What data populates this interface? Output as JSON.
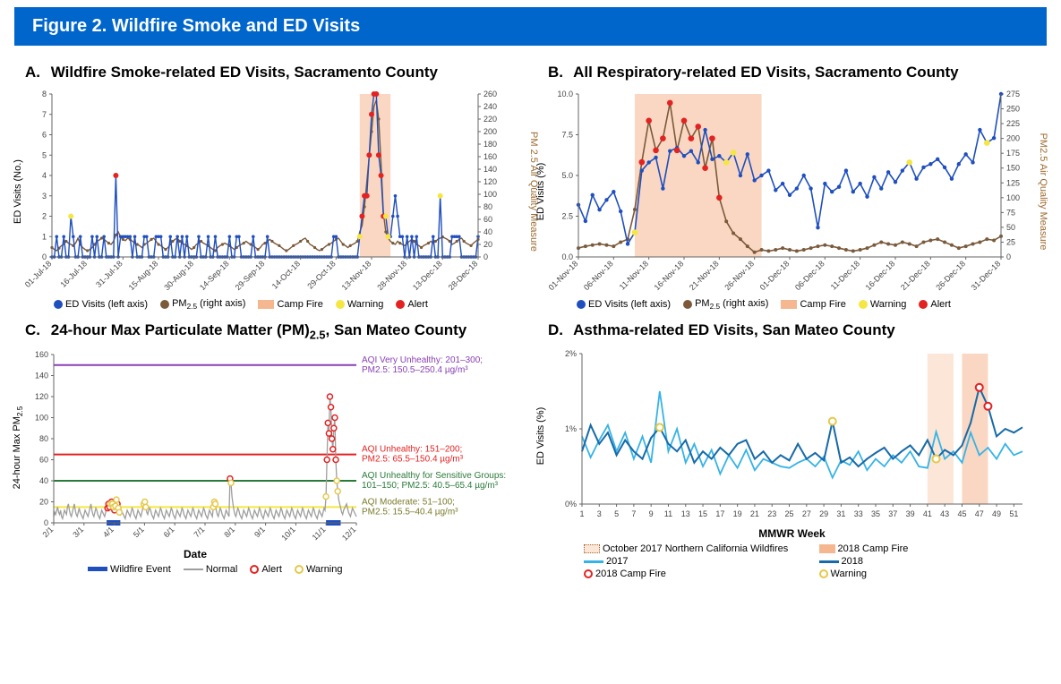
{
  "banner_title": "Figure 2. Wildfire Smoke and ED Visits",
  "colors": {
    "banner_bg": "#0066CC",
    "ed_visits_blue": "#1f4fbf",
    "pm25_brown": "#7a5a3a",
    "campfire_fill": "#f4b78f",
    "campfire_fill_alpha": "rgba(244,183,143,0.55)",
    "warning_yellow": "#f5e642",
    "alert_red": "#e32222",
    "normal_gray": "#9e9e9e",
    "purple": "#8a3fb5",
    "green": "#2a7a3a",
    "olive": "#7a7a2a",
    "cyan_light": "#36b3e6",
    "cyan_dark": "#166aa8",
    "brown_axis": "#9e6b2f",
    "oct2017_fill": "rgba(244,183,143,0.35)",
    "grid": "#e0e0e0"
  },
  "panelA": {
    "label": "A.",
    "title": "Wildfire Smoke-related ED Visits, Sacramento County",
    "left_axis_label": "ED Visits (No.)",
    "right_axis_label": "PM 2.5 Air Quality Measure",
    "y_left": {
      "min": 0,
      "max": 8,
      "step": 1
    },
    "y_right": {
      "min": 0,
      "max": 260,
      "step": 20
    },
    "campfire_x": [
      130,
      143
    ],
    "x_ticks": [
      "01-Jul-18",
      "16-Jul-18",
      "31-Jul-18",
      "15-Aug-18",
      "30-Aug-18",
      "14-Sep-18",
      "29-Sep-18",
      "14-Oct-18",
      "29-Oct-18",
      "13-Nov-18",
      "28-Nov-18",
      "13-Dec-18",
      "28-Dec-18"
    ],
    "ed_values": [
      0,
      0,
      1,
      0,
      0,
      1,
      0,
      0,
      2,
      1,
      0,
      0,
      1,
      0,
      0,
      0,
      0,
      1,
      0,
      1,
      0,
      0,
      1,
      0,
      0,
      0,
      0,
      4,
      0,
      1,
      1,
      1,
      1,
      1,
      0,
      1,
      0,
      0,
      0,
      1,
      1,
      0,
      0,
      0,
      1,
      1,
      1,
      0,
      0,
      0,
      1,
      0,
      0,
      1,
      0,
      1,
      0,
      1,
      0,
      0,
      0,
      0,
      1,
      0,
      0,
      0,
      1,
      0,
      0,
      1,
      0,
      0,
      0,
      0,
      0,
      1,
      0,
      0,
      1,
      1,
      0,
      0,
      0,
      0,
      0,
      1,
      0,
      0,
      0,
      0,
      0,
      1,
      0,
      0,
      0,
      0,
      0,
      0,
      0,
      0,
      0,
      0,
      0,
      0,
      0,
      0,
      0,
      0,
      0,
      0,
      0,
      0,
      0,
      0,
      0,
      0,
      0,
      0,
      0,
      1,
      1,
      0,
      0,
      0,
      0,
      0,
      0,
      0,
      0,
      0,
      1,
      2,
      3,
      3,
      5,
      7,
      8,
      8,
      5,
      4,
      2,
      2,
      1,
      1,
      2,
      3,
      2,
      1,
      1,
      0,
      1,
      0,
      1,
      0,
      1,
      0,
      0,
      0,
      0,
      0,
      0,
      1,
      0,
      0,
      3,
      0,
      0,
      0,
      0,
      1,
      1,
      1,
      1,
      0,
      0,
      0,
      0,
      0,
      0,
      0,
      1
    ],
    "pm_values": [
      15,
      12,
      10,
      14,
      18,
      20,
      25,
      22,
      20,
      18,
      22,
      30,
      20,
      15,
      12,
      10,
      12,
      15,
      20,
      25,
      27,
      30,
      28,
      25,
      22,
      20,
      25,
      35,
      40,
      32,
      28,
      26,
      30,
      28,
      25,
      22,
      20,
      18,
      15,
      20,
      22,
      25,
      28,
      30,
      25,
      20,
      18,
      15,
      12,
      15,
      20,
      25,
      28,
      30,
      25,
      22,
      20,
      18,
      15,
      12,
      15,
      20,
      22,
      25,
      22,
      20,
      18,
      15,
      12,
      10,
      15,
      18,
      20,
      22,
      20,
      18,
      15,
      12,
      15,
      18,
      20,
      22,
      25,
      22,
      20,
      18,
      15,
      12,
      15,
      20,
      22,
      25,
      28,
      25,
      22,
      20,
      18,
      15,
      12,
      10,
      12,
      15,
      18,
      20,
      22,
      25,
      28,
      30,
      25,
      20,
      18,
      15,
      12,
      10,
      12,
      15,
      18,
      20,
      22,
      25,
      28,
      30,
      25,
      20,
      18,
      15,
      18,
      20,
      22,
      25,
      40,
      50,
      80,
      120,
      160,
      200,
      240,
      250,
      220,
      150,
      70,
      40,
      30,
      25,
      22,
      20,
      25,
      22,
      20,
      18,
      22,
      25,
      28,
      25,
      20,
      18,
      15,
      18,
      20,
      22,
      25,
      22,
      25,
      28,
      30,
      32,
      30,
      28,
      25,
      20,
      22,
      25,
      28,
      30,
      25,
      22,
      20,
      18,
      22,
      25,
      28
    ],
    "alerts_idx": [
      27,
      131,
      132,
      133,
      134,
      135,
      136,
      137,
      138,
      139,
      140
    ],
    "warnings_idx": [
      8,
      130,
      141,
      142,
      164
    ],
    "legend": {
      "ed": "ED Visits (left axis)",
      "pm": "PM2.5 (right axis)",
      "camp": "Camp Fire",
      "warn": "Warning",
      "alert": "Alert"
    }
  },
  "panelB": {
    "label": "B.",
    "title": "All Respiratory-related ED Visits, Sacramento County",
    "left_axis_label": "ED Visits (%)",
    "right_axis_label": "PM2.5 Air Quality Measure",
    "y_left": {
      "min": 0,
      "max": 10,
      "step": 2.5,
      "labels": [
        "0.0",
        "2.5",
        "5.0",
        "7.5",
        "10.0"
      ]
    },
    "y_right": {
      "min": 0,
      "max": 275,
      "step": 25
    },
    "campfire_x": [
      8,
      26
    ],
    "x_ticks": [
      "01-Nov-18",
      "06-Nov-18",
      "11-Nov-18",
      "16-Nov-18",
      "21-Nov-18",
      "26-Nov-18",
      "01-Dec-18",
      "06-Dec-18",
      "11-Dec-18",
      "16-Dec-18",
      "21-Dec-18",
      "26-Dec-18",
      "31-Dec-18"
    ],
    "ed_values": [
      3.2,
      2.2,
      3.8,
      2.9,
      3.5,
      4.0,
      2.8,
      0.8,
      1.5,
      5.3,
      5.8,
      6.1,
      4.2,
      6.5,
      6.7,
      6.2,
      6.5,
      5.8,
      7.8,
      6.0,
      6.2,
      5.8,
      6.4,
      5.0,
      6.3,
      4.7,
      5.0,
      5.3,
      4.1,
      4.5,
      3.8,
      4.2,
      5.0,
      4.2,
      1.8,
      4.5,
      4.0,
      4.3,
      5.3,
      4.0,
      4.5,
      3.7,
      4.9,
      4.2,
      5.2,
      4.6,
      5.3,
      5.8,
      4.8,
      5.5,
      5.7,
      6.0,
      5.5,
      4.8,
      5.7,
      6.3,
      5.8,
      7.8,
      7.0,
      7.3,
      10.0
    ],
    "pm_values": [
      15,
      18,
      20,
      22,
      20,
      18,
      25,
      30,
      80,
      160,
      230,
      180,
      200,
      260,
      180,
      230,
      200,
      220,
      150,
      200,
      100,
      60,
      40,
      30,
      18,
      8,
      12,
      10,
      12,
      15,
      12,
      10,
      12,
      15,
      18,
      20,
      18,
      15,
      12,
      10,
      12,
      15,
      20,
      25,
      22,
      20,
      25,
      22,
      18,
      25,
      28,
      30,
      25,
      20,
      15,
      18,
      22,
      25,
      30,
      28,
      35
    ],
    "alerts_idx": [
      9,
      10,
      11,
      12,
      13,
      14,
      15,
      16,
      17,
      18,
      19,
      20
    ],
    "warnings_idx": [
      8,
      21,
      22,
      47,
      58
    ],
    "legend": {
      "ed": "ED Visits (left axis)",
      "pm": "PM2.5 (right axis)",
      "camp": "Camp Fire",
      "warn": "Warning",
      "alert": "Alert"
    }
  },
  "panelC": {
    "label": "C.",
    "title": "24-hour Max Particulate Matter (PM)2.5, San Mateo County",
    "left_axis_label": "24-hour Max PM2.5",
    "bottom_axis_label": "Date",
    "y": {
      "min": 0,
      "max": 160,
      "step": 20
    },
    "x_ticks": [
      "2/1",
      "3/1",
      "4/1",
      "5/1",
      "6/1",
      "7/1",
      "8/1",
      "9/1",
      "10/1",
      "11/1",
      "12/1"
    ],
    "wildfire_events": [
      [
        54,
        68
      ],
      [
        278,
        293
      ]
    ],
    "normal": [
      6,
      10,
      8,
      12,
      15,
      10,
      8,
      12,
      6,
      4,
      8,
      12,
      10,
      8,
      15,
      18,
      12,
      8,
      6,
      10,
      14,
      18,
      12,
      8,
      6,
      10,
      14,
      10,
      8,
      6,
      4,
      8,
      12,
      10,
      8,
      6,
      10,
      14,
      18,
      12,
      8,
      6,
      10,
      14,
      12,
      8,
      6,
      4,
      8,
      12,
      10,
      8,
      6,
      10,
      16,
      14,
      18,
      15,
      18,
      20,
      18,
      15,
      12,
      16,
      22,
      18,
      14,
      10,
      8,
      12,
      10,
      8,
      6,
      4,
      8,
      12,
      10,
      8,
      6,
      10,
      14,
      12,
      8,
      6,
      4,
      8,
      12,
      10,
      8,
      6,
      10,
      14,
      18,
      20,
      15,
      10,
      8,
      12,
      14,
      12,
      8,
      6,
      4,
      8,
      12,
      10,
      8,
      6,
      10,
      14,
      12,
      8,
      6,
      4,
      8,
      12,
      10,
      8,
      6,
      10,
      14,
      12,
      8,
      6,
      4,
      8,
      12,
      10,
      8,
      6,
      10,
      14,
      12,
      8,
      6,
      4,
      8,
      12,
      10,
      8,
      6,
      10,
      14,
      12,
      8,
      6,
      4,
      8,
      12,
      10,
      8,
      6,
      10,
      14,
      12,
      8,
      6,
      4,
      8,
      12,
      10,
      8,
      6,
      15,
      20,
      18,
      12,
      8,
      6,
      10,
      14,
      12,
      8,
      6,
      4,
      8,
      12,
      10,
      8,
      6,
      42,
      38,
      25,
      18,
      12,
      8,
      6,
      10,
      14,
      12,
      8,
      6,
      4,
      8,
      12,
      10,
      8,
      6,
      10,
      14,
      12,
      8,
      6,
      4,
      8,
      12,
      10,
      8,
      6,
      10,
      14,
      12,
      8,
      6,
      4,
      8,
      12,
      10,
      8,
      6,
      10,
      14,
      12,
      8,
      6,
      4,
      8,
      12,
      10,
      8,
      6,
      10,
      14,
      12,
      8,
      6,
      4,
      8,
      12,
      10,
      8,
      6,
      10,
      14,
      12,
      8,
      6,
      4,
      8,
      12,
      10,
      8,
      6,
      10,
      14,
      12,
      8,
      6,
      4,
      8,
      12,
      10,
      8,
      6,
      10,
      14,
      12,
      8,
      6,
      4,
      8,
      12,
      10,
      8,
      6,
      10,
      14,
      12,
      25,
      60,
      95,
      85,
      120,
      110,
      80,
      70,
      90,
      100,
      60,
      40,
      30,
      22,
      18,
      14,
      10,
      8,
      12,
      14,
      16,
      18,
      14,
      10,
      8,
      6,
      10,
      14,
      12,
      10,
      8,
      6
    ],
    "thresholds": [
      {
        "y": 150,
        "color": "#8a3fb5",
        "label": "AQI Very Unhealthy: 201–300;\nPM2.5: 150.5–250.4 µg/m³"
      },
      {
        "y": 65,
        "color": "#e32222",
        "label": "AQI Unhealthy: 151–200;\nPM2.5: 65.5–150.4 µg/m³"
      },
      {
        "y": 40,
        "color": "#2a7a3a",
        "label": "AQI Unhealthy for Sensitive Groups:\n101–150; PM2.5: 40.5–65.4 µg/m³"
      },
      {
        "y": 15,
        "color": "#f5e642",
        "label": "AQI Moderate: 51–100;\nPM2.5: 15.5–40.4 µg/m³",
        "text_color": "#7a7a2a"
      }
    ],
    "alerts_idx": [
      55,
      56,
      57,
      59,
      62,
      65,
      180,
      279,
      280,
      281,
      282,
      283,
      284,
      285,
      286,
      287,
      288
    ],
    "warnings_idx": [
      58,
      60,
      61,
      63,
      64,
      66,
      67,
      92,
      93,
      94,
      163,
      164,
      165,
      181,
      278,
      289,
      290
    ],
    "legend": {
      "wildfire": "Wildfire Event",
      "normal": "Normal",
      "alert": "Alert",
      "warning": "Warning"
    }
  },
  "panelD": {
    "label": "D.",
    "title": "Asthma-related ED Visits, San Mateo County",
    "left_axis_label": "ED Visits (%)",
    "bottom_axis_label": "MMWR Week",
    "y": {
      "min": 0,
      "max": 2,
      "step": 1,
      "labels": [
        "0%",
        "1%",
        "2%"
      ]
    },
    "x_ticks": [
      "1",
      "3",
      "5",
      "7",
      "9",
      "11",
      "13",
      "15",
      "17",
      "19",
      "21",
      "23",
      "25",
      "27",
      "29",
      "31",
      "33",
      "35",
      "37",
      "39",
      "41",
      "43",
      "45",
      "47",
      "49",
      "51"
    ],
    "oct2017_band": [
      41,
      44
    ],
    "camp2018_band": [
      45,
      48
    ],
    "series_2017": [
      0.9,
      0.62,
      0.85,
      1.05,
      0.7,
      0.95,
      0.6,
      0.9,
      0.55,
      1.5,
      0.7,
      1.0,
      0.55,
      0.8,
      0.5,
      0.72,
      0.4,
      0.65,
      0.48,
      0.72,
      0.45,
      0.6,
      0.55,
      0.5,
      0.48,
      0.55,
      0.6,
      0.5,
      0.63,
      0.35,
      0.58,
      0.52,
      0.7,
      0.45,
      0.6,
      0.5,
      0.65,
      0.55,
      0.7,
      0.5,
      0.48,
      0.96,
      0.6,
      0.7,
      0.55,
      0.95,
      0.65,
      0.75,
      0.6,
      0.8,
      0.65,
      0.7
    ],
    "series_2018": [
      0.7,
      1.05,
      0.8,
      0.95,
      0.65,
      0.85,
      0.7,
      0.6,
      0.88,
      1.02,
      0.8,
      0.7,
      0.85,
      0.55,
      0.7,
      0.6,
      0.75,
      0.65,
      0.8,
      0.85,
      0.6,
      0.7,
      0.55,
      0.65,
      0.58,
      0.8,
      0.6,
      0.68,
      0.58,
      1.1,
      0.55,
      0.62,
      0.5,
      0.6,
      0.68,
      0.75,
      0.6,
      0.7,
      0.78,
      0.65,
      0.85,
      0.6,
      0.72,
      0.65,
      0.78,
      1.08,
      1.55,
      1.3,
      0.9,
      1.0,
      0.95,
      1.02
    ],
    "campfire_markers_idx": [
      46,
      47
    ],
    "warning_markers_idx": [
      9,
      29,
      41
    ],
    "legend": {
      "oct2017": "October 2017 Northern California Wildfires",
      "camp2018_band": "2018 Camp Fire",
      "s2017": "2017",
      "s2018": "2018",
      "camp_marker": "2018 Camp Fire",
      "warn_marker": "Warning"
    }
  }
}
